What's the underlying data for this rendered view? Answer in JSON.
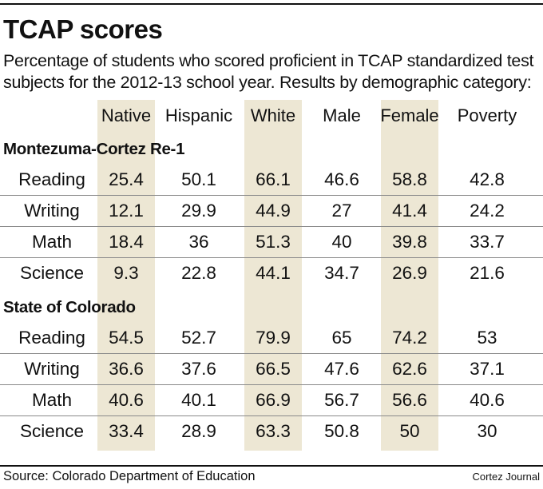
{
  "title": "TCAP scores",
  "subtitle": "Percentage of students who scored proficient in TCAP standardized test subjects for the 2012-13 school year. Results by demographic category:",
  "source": "Source: Colorado Department of Education",
  "credit": "Cortez Journal",
  "colors": {
    "shaded_column": "#ede7d4",
    "rule": "#111111",
    "row_divider": "#8a8a8a"
  },
  "chart_data": {
    "type": "table",
    "columns": [
      "Native",
      "Hispanic",
      "White",
      "Male",
      "Female",
      "Poverty"
    ],
    "shaded_columns": [
      "Native",
      "White",
      "Female"
    ],
    "sections": [
      {
        "name": "Montezuma-Cortez Re-1",
        "rows": [
          {
            "label": "Reading",
            "values": [
              "25.4",
              "50.1",
              "66.1",
              "46.6",
              "58.8",
              "42.8"
            ]
          },
          {
            "label": "Writing",
            "values": [
              "12.1",
              "29.9",
              "44.9",
              "27",
              "41.4",
              "24.2"
            ]
          },
          {
            "label": "Math",
            "values": [
              "18.4",
              "36",
              "51.3",
              "40",
              "39.8",
              "33.7"
            ]
          },
          {
            "label": "Science",
            "values": [
              "9.3",
              "22.8",
              "44.1",
              "34.7",
              "26.9",
              "21.6"
            ]
          }
        ]
      },
      {
        "name": "State of Colorado",
        "rows": [
          {
            "label": "Reading",
            "values": [
              "54.5",
              "52.7",
              "79.9",
              "65",
              "74.2",
              "53"
            ]
          },
          {
            "label": "Writing",
            "values": [
              "36.6",
              "37.6",
              "66.5",
              "47.6",
              "62.6",
              "37.1"
            ]
          },
          {
            "label": "Math",
            "values": [
              "40.6",
              "40.1",
              "66.9",
              "56.7",
              "56.6",
              "40.6"
            ]
          },
          {
            "label": "Science",
            "values": [
              "33.4",
              "28.9",
              "63.3",
              "50.8",
              "50",
              "30"
            ]
          }
        ]
      }
    ]
  }
}
